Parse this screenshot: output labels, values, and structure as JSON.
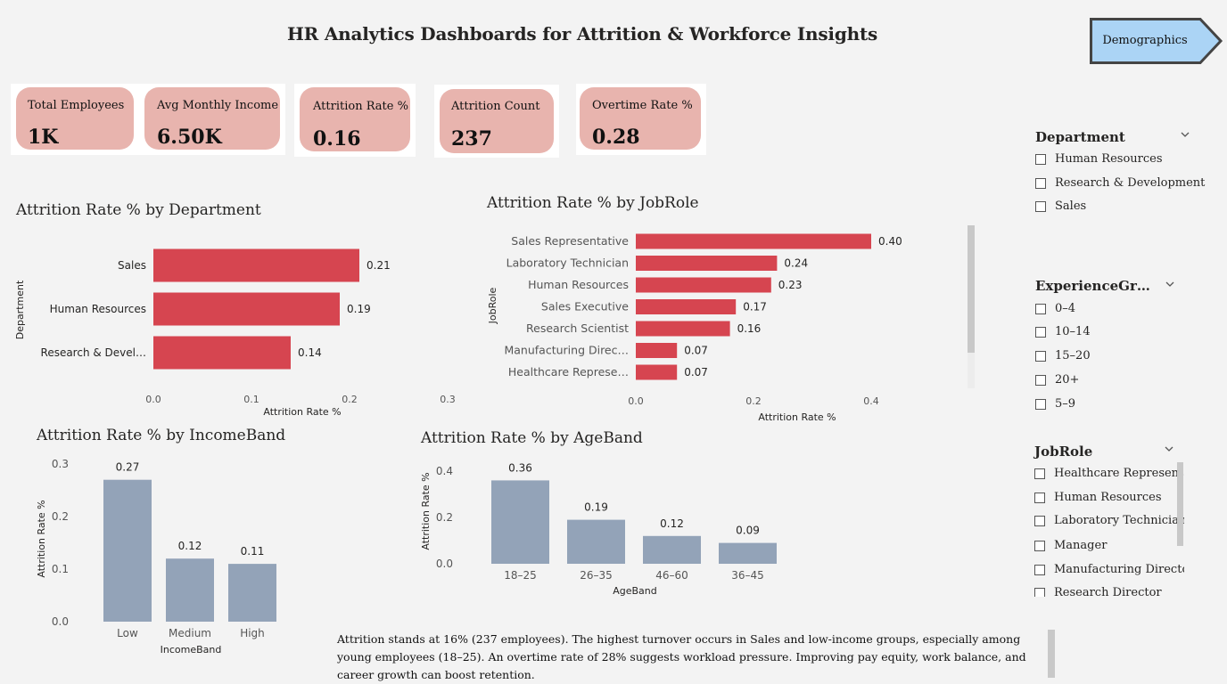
{
  "title": "HR Analytics Dashboards for  Attrition & Workforce Insights",
  "nav_button": {
    "label": "Demographics"
  },
  "kpis": [
    {
      "label": "Total Employees",
      "value": "1K"
    },
    {
      "label": "Avg Monthly Income",
      "value": "6.50K"
    },
    {
      "label": "Attrition Rate %",
      "value": "0.16"
    },
    {
      "label": "Attrition Count",
      "value": "237"
    },
    {
      "label": "Overtime Rate %",
      "value": "0.28"
    }
  ],
  "colors": {
    "bar_red": "#d64550",
    "bar_blue": "#93a3b8",
    "kpi_card": "#e8b4ae",
    "nav_button": "#abd4f5"
  },
  "chart_data": [
    {
      "type": "bar",
      "orientation": "horizontal",
      "title": "Attrition Rate % by Department",
      "xlabel": "Attrition Rate %",
      "ylabel": "Department",
      "categories": [
        "Sales",
        "Human Resources",
        "Research & Devel…"
      ],
      "values": [
        0.21,
        0.19,
        0.14
      ],
      "data_labels": [
        "0.21",
        "0.19",
        "0.14"
      ],
      "xlim": [
        0,
        0.3
      ],
      "x_ticks": [
        "0.0",
        "0.1",
        "0.2",
        "0.3"
      ]
    },
    {
      "type": "bar",
      "orientation": "horizontal",
      "title": "Attrition Rate % by JobRole",
      "xlabel": "Attrition Rate %",
      "ylabel": "JobRole",
      "categories": [
        "Sales Representative",
        "Laboratory Technician",
        "Human Resources",
        "Sales Executive",
        "Research Scientist",
        "Manufacturing Direc…",
        "Healthcare Represe…"
      ],
      "values": [
        0.4,
        0.24,
        0.23,
        0.17,
        0.16,
        0.07,
        0.07
      ],
      "data_labels": [
        "0.40",
        "0.24",
        "0.23",
        "0.17",
        "0.16",
        "0.07",
        "0.07"
      ],
      "xlim": [
        0,
        0.45
      ],
      "x_ticks": [
        "0.0",
        "0.2",
        "0.4"
      ]
    },
    {
      "type": "bar",
      "orientation": "vertical",
      "title": "Attrition Rate % by IncomeBand",
      "xlabel": "IncomeBand",
      "ylabel": "Attrition Rate %",
      "categories": [
        "Low",
        "Medium",
        "High"
      ],
      "values": [
        0.27,
        0.12,
        0.11
      ],
      "data_labels": [
        "0.27",
        "0.12",
        "0.11"
      ],
      "ylim": [
        0,
        0.3
      ],
      "y_ticks": [
        "0.0",
        "0.1",
        "0.2",
        "0.3"
      ]
    },
    {
      "type": "bar",
      "orientation": "vertical",
      "title": "Attrition Rate % by AgeBand",
      "xlabel": "AgeBand",
      "ylabel": "Attrition Rate %",
      "categories": [
        "18–25",
        "26–35",
        "46–60",
        "36–45"
      ],
      "values": [
        0.36,
        0.19,
        0.12,
        0.09
      ],
      "data_labels": [
        "0.36",
        "0.19",
        "0.12",
        "0.09"
      ],
      "ylim": [
        0,
        0.4
      ],
      "y_ticks": [
        "0.0",
        "0.2",
        "0.4"
      ]
    }
  ],
  "slicers": {
    "department": {
      "title": "Department",
      "items": [
        "Human Resources",
        "Research & Development",
        "Sales"
      ]
    },
    "experience": {
      "title": "ExperienceGr…",
      "items": [
        "0–4",
        "10–14",
        "15–20",
        "20+",
        "5–9"
      ]
    },
    "jobrole": {
      "title": "JobRole",
      "items": [
        "Healthcare Representa…",
        "Human Resources",
        "Laboratory Technician",
        "Manager",
        "Manufacturing Director",
        "Research Director"
      ]
    }
  },
  "summary": "Attrition stands at 16% (237 employees). The highest turnover occurs in Sales and low-income groups, especially among young employees (18–25). An overtime rate of 28% suggests workload pressure. Improving pay equity, work balance, and career growth can boost retention."
}
